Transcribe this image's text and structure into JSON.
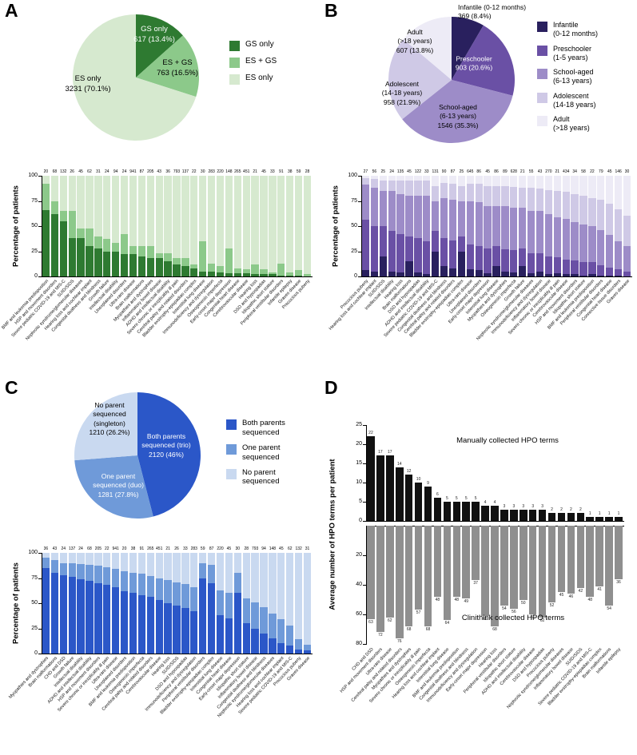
{
  "figure": {
    "panels": {
      "A": {
        "label": "A"
      },
      "B": {
        "label": "B"
      },
      "C": {
        "label": "C"
      },
      "D": {
        "label": "D"
      }
    }
  },
  "chart_data": [
    {
      "id": "a_pie",
      "type": "pie",
      "slices": [
        {
          "label": "GS only",
          "value": 617,
          "pct": "13.4%",
          "color": "#2e7a31",
          "label_color": "#ffffff",
          "label_lines": [
            "GS only",
            "617 (13.4%)"
          ]
        },
        {
          "label": "ES + GS",
          "value": 763,
          "pct": "16.5%",
          "color": "#8cc98a",
          "label_color": "#000000",
          "label_lines": [
            "ES + GS",
            "763 (16.5%)"
          ]
        },
        {
          "label": "ES only",
          "value": 3231,
          "pct": "70.1%",
          "color": "#d6e9cf",
          "label_color": "#000000",
          "label_lines": [
            "ES only",
            "3231 (70.1%)"
          ]
        }
      ],
      "legend": {
        "items": [
          {
            "label": "GS only",
            "color": "#2e7a31"
          },
          {
            "label": "ES + GS",
            "color": "#8cc98a"
          },
          {
            "label": "ES only",
            "color": "#d6e9cf"
          }
        ]
      }
    },
    {
      "id": "a_bars",
      "type": "stacked-bar",
      "ylabel": "Percentage of patients",
      "ymax": 100,
      "yticks": [
        0,
        25,
        50,
        75,
        100
      ],
      "counts": [
        20,
        68,
        132,
        26,
        45,
        62,
        31,
        24,
        94,
        24,
        941,
        87,
        205,
        43,
        36,
        793,
        137,
        22,
        30,
        283,
        220,
        148,
        265,
        451,
        21,
        45,
        33,
        91,
        38,
        59,
        28
      ],
      "categories": [
        "BMF and leukemia predisposition",
        "HSP and movement disorders",
        "Severe pediatric COVID-19 and MIS-C",
        "SUID/SIDS",
        "Nephrotic syndrome/glomerular diseases",
        "Hearing loss and cochlear implant",
        "Congenital deafness and blindness",
        "Growth failure",
        "Intellectual disability",
        "Unexplained disorders",
        "Ultra-rare disease",
        "Brain malformations",
        "Myopathies and dystrophies",
        "Inflammatory bowel disease",
        "ADHD and intellectual disability",
        "Severe chronic or inexplicably ill pain",
        "Cerebral palsy and related disorders",
        "Bladder exstrophy-epispadias complex",
        "Interstitial lung disease",
        "Immunodeficiency and dysregulation",
        "Osteogenesis imperfecta",
        "Early-onset major depression",
        "Congenital heart disease",
        "Cerebrovascular disease",
        "Hearing loss",
        "DSD and hypospadias",
        "Idiopathic short stature",
        "Peripheral vestibular disorders",
        "Infantile epilepsy",
        "Graves disease",
        "Precocious puberty"
      ],
      "series": [
        {
          "name": "GS only",
          "color": "#2e7a31",
          "values": [
            66,
            62,
            55,
            38,
            38,
            30,
            28,
            25,
            25,
            22,
            22,
            20,
            18,
            18,
            15,
            12,
            10,
            8,
            5,
            5,
            4,
            3,
            3,
            3,
            2,
            2,
            2,
            1,
            1,
            1,
            0
          ]
        },
        {
          "name": "ES + GS",
          "color": "#8cc98a",
          "values": [
            26,
            13,
            10,
            27,
            10,
            18,
            12,
            12,
            8,
            20,
            8,
            10,
            12,
            5,
            8,
            6,
            8,
            4,
            30,
            8,
            6,
            25,
            5,
            4,
            10,
            5,
            2,
            12,
            3,
            5,
            2
          ]
        },
        {
          "name": "ES only",
          "color": "#d6e9cf",
          "values": [
            8,
            25,
            35,
            35,
            52,
            52,
            60,
            63,
            67,
            58,
            70,
            70,
            70,
            77,
            77,
            82,
            82,
            88,
            65,
            87,
            90,
            72,
            92,
            93,
            88,
            93,
            96,
            87,
            96,
            94,
            98
          ]
        }
      ]
    },
    {
      "id": "b_pie",
      "type": "pie",
      "slices": [
        {
          "label": "Infantile (0-12 months)",
          "value": 369,
          "pct": "8.4%",
          "color": "#29205e",
          "label_color": "#000000",
          "label_lines": [
            "Infantile  (0-12 months)",
            "369 (8.4%)"
          ]
        },
        {
          "label": "Preschooler (1-5 years)",
          "value": 903,
          "pct": "20.6%",
          "color": "#6a50a5",
          "label_color": "#ffffff",
          "label_lines": [
            "Preschooler",
            "903 (20.6%)"
          ]
        },
        {
          "label": "School-aged (6-13 years)",
          "value": 1546,
          "pct": "35.3%",
          "color": "#9d8cc8",
          "label_color": "#000000",
          "label_lines": [
            "School-aged",
            "(6-13 years)",
            "1546 (35.3%)"
          ]
        },
        {
          "label": "Adolescent (14-18 years)",
          "value": 958,
          "pct": "21.9%",
          "color": "#cfc9e6",
          "label_color": "#000000",
          "label_lines": [
            "Adolescent",
            "(14-18 years)",
            "958 (21.9%)"
          ]
        },
        {
          "label": "Adult (>18 years)",
          "value": 607,
          "pct": "13.8%",
          "color": "#edebf6",
          "label_color": "#000000",
          "label_lines": [
            "Adult",
            "(>18 years)",
            "607 (13.8%)"
          ]
        }
      ],
      "legend": {
        "items": [
          {
            "label": "Infantile\n(0-12 months)",
            "color": "#29205e"
          },
          {
            "label": "Preschooler\n(1-5 years)",
            "color": "#6a50a5"
          },
          {
            "label": "School-aged\n(6-13 years)",
            "color": "#9d8cc8"
          },
          {
            "label": "Adolescent\n(14-18 years)",
            "color": "#cfc9e6"
          },
          {
            "label": "Adult\n(>18 years)",
            "color": "#edebf6"
          }
        ]
      }
    },
    {
      "id": "b_bars",
      "type": "stacked-bar",
      "ylabel": "Percentage of patients",
      "ymax": 100,
      "yticks": [
        0,
        25,
        50,
        75,
        100
      ],
      "counts": [
        27,
        56,
        25,
        24,
        135,
        45,
        122,
        33,
        131,
        90,
        87,
        25,
        645,
        86,
        45,
        86,
        89,
        628,
        21,
        55,
        43,
        270,
        21,
        434,
        34,
        58,
        22,
        79,
        45,
        146,
        30
      ],
      "categories": [
        "Precocious puberty",
        "Hearing loss and cochlear implant",
        "SUID/SIDS",
        "Intellectual disability",
        "Hearing loss",
        "Brain malformations",
        "DSD and hypospadias",
        "ADHD and intellectual disability",
        "Severe pediatric COVID-19 and MIS-C",
        "Congenital deafness and blindness",
        "Cerebral palsy and related disorders",
        "Bladder exstrophy-epispadias complex",
        "Ultra-rare disease",
        "Unexplained disorders",
        "Early-onset major depression",
        "Interstitial lung disease",
        "Myopathies and dystrophies",
        "Osteogenesis imperfecta",
        "Growth failure",
        "Nephrotic syndrome/glomerular diseases",
        "Immunodeficiency and dysregulation",
        "Inflammatory bowel disease",
        "Severe chronic or inexplicably ill pain",
        "Cerebrovascular disease",
        "HSP and movement disorders",
        "Idiopathic short stature",
        "BMF and leukemia predisposition",
        "Peripheral vestibular disorders",
        "Congenital heart disease",
        "Connective tissue disorders",
        "Graves disease"
      ],
      "series": [
        {
          "name": "Infantile (0-12 months)",
          "color": "#29205e",
          "values": [
            6,
            5,
            20,
            5,
            4,
            15,
            4,
            2,
            25,
            10,
            8,
            25,
            7,
            6,
            3,
            10,
            5,
            4,
            10,
            3,
            5,
            2,
            3,
            2,
            2,
            1,
            2,
            1,
            1,
            1,
            0
          ]
        },
        {
          "name": "Preschooler (1-5 years)",
          "color": "#6a50a5",
          "values": [
            50,
            45,
            30,
            40,
            38,
            25,
            34,
            33,
            20,
            28,
            28,
            15,
            25,
            24,
            25,
            20,
            22,
            22,
            18,
            20,
            18,
            18,
            16,
            15,
            14,
            13,
            12,
            10,
            8,
            6,
            5
          ]
        },
        {
          "name": "School-aged (6-13 years)",
          "color": "#9d8cc8",
          "values": [
            35,
            38,
            35,
            40,
            40,
            40,
            42,
            45,
            30,
            40,
            40,
            35,
            43,
            44,
            42,
            40,
            43,
            42,
            40,
            42,
            42,
            42,
            40,
            40,
            38,
            38,
            36,
            35,
            32,
            28,
            25
          ]
        },
        {
          "name": "Adolescent (14-18 years)",
          "color": "#cfc9e6",
          "values": [
            7,
            9,
            10,
            10,
            13,
            15,
            15,
            15,
            15,
            15,
            16,
            15,
            17,
            18,
            20,
            20,
            20,
            21,
            20,
            23,
            22,
            24,
            26,
            27,
            28,
            28,
            28,
            30,
            31,
            32,
            30
          ]
        },
        {
          "name": "Adult (>18 years)",
          "color": "#edebf6",
          "values": [
            2,
            3,
            5,
            5,
            5,
            5,
            5,
            5,
            10,
            7,
            8,
            10,
            8,
            8,
            10,
            10,
            10,
            11,
            12,
            12,
            13,
            14,
            15,
            16,
            18,
            20,
            22,
            24,
            28,
            33,
            40
          ]
        }
      ]
    },
    {
      "id": "c_pie",
      "type": "pie",
      "slices": [
        {
          "label": "Both parents sequenced (trio)",
          "value": 2120,
          "pct": "46%",
          "color": "#2b57c8",
          "label_color": "#ffffff",
          "label_lines": [
            "Both parents",
            "sequenced (trio)",
            "2120 (46%)"
          ]
        },
        {
          "label": "One parent sequenced (duo)",
          "value": 1281,
          "pct": "27.8%",
          "color": "#6f9ad9",
          "label_color": "#ffffff",
          "label_lines": [
            "One parent",
            "sequenced (duo)",
            "1281 (27.8%)"
          ]
        },
        {
          "label": "No parent sequenced (singleton)",
          "value": 1210,
          "pct": "26.2%",
          "color": "#c9d9f0",
          "label_color": "#000000",
          "label_lines": [
            "No parent",
            "sequenced",
            "(singleton)",
            "1210 (26.2%)"
          ]
        }
      ],
      "legend": {
        "items": [
          {
            "label": "Both parents\nsequenced",
            "color": "#2b57c8"
          },
          {
            "label": "One parent\nsequenced",
            "color": "#6f9ad9"
          },
          {
            "label": "No parent\nsequenced",
            "color": "#c9d9f0"
          }
        ]
      }
    },
    {
      "id": "c_bars",
      "type": "stacked-bar",
      "ylabel": "Percentage of patients",
      "ymax": 100,
      "yticks": [
        0,
        25,
        50,
        75,
        100
      ],
      "counts": [
        36,
        43,
        24,
        137,
        24,
        68,
        205,
        22,
        941,
        20,
        38,
        91,
        265,
        451,
        21,
        26,
        33,
        283,
        59,
        87,
        220,
        45,
        30,
        28,
        793,
        94,
        148,
        45,
        62,
        132,
        31
      ],
      "categories": [
        "Myopathies and dystrophies",
        "Brain malformations",
        "CHD and DSD",
        "Growth failure",
        "Intellectual disability",
        "ADHD and intellectual disability",
        "HSP and movement disorders",
        "Severe chronic or inexplicably ill pain",
        "Ultra-rare disease",
        "Unexplained disorders",
        "BMF and leukemia predisposition",
        "Osteogenesis imperfecta",
        "Cerebral palsy and related disorders",
        "Cerebrovascular disease",
        "Hearing loss",
        "SUID/SIDS",
        "DSD and hypospadias",
        "Immunodeficiency and dysregulation",
        "Peripheral vestibular disorders",
        "Bladder exstrophy-epispadias complex",
        "Interstitial lung disease",
        "Congenital heart disease",
        "Early-onset major depression",
        "Idiopathic short stature",
        "Inflammatory bowel disease",
        "Congenital deafness and blindness",
        "Nephrotic syndrome/glomerular diseases",
        "Hearing loss and cochlear implant",
        "Severe pediatric COVID-19 and MIS-C",
        "Precocious puberty",
        "Graves disease"
      ],
      "series": [
        {
          "name": "Both parents sequenced",
          "color": "#2b57c8",
          "values": [
            85,
            80,
            78,
            76,
            74,
            72,
            70,
            68,
            66,
            62,
            60,
            58,
            56,
            53,
            50,
            48,
            45,
            42,
            75,
            70,
            38,
            35,
            60,
            30,
            25,
            20,
            15,
            10,
            8,
            4,
            3
          ]
        },
        {
          "name": "One parent sequenced",
          "color": "#6f9ad9",
          "values": [
            10,
            13,
            12,
            14,
            15,
            16,
            17,
            18,
            18,
            20,
            20,
            21,
            21,
            22,
            23,
            23,
            24,
            24,
            15,
            18,
            25,
            25,
            20,
            25,
            26,
            26,
            25,
            24,
            20,
            10,
            6
          ]
        },
        {
          "name": "No parent sequenced",
          "color": "#c9d9f0",
          "values": [
            5,
            7,
            10,
            10,
            11,
            12,
            13,
            14,
            16,
            18,
            20,
            21,
            23,
            25,
            27,
            29,
            31,
            34,
            10,
            12,
            37,
            40,
            20,
            45,
            49,
            54,
            60,
            66,
            72,
            86,
            91
          ]
        }
      ]
    },
    {
      "id": "d_bars",
      "type": "bar-mirrored",
      "ylabel": "Average number of HPO terms per patient",
      "categories": [
        "CHD and DSD",
        "HSP and movement disorders",
        "Ultra-rare disease",
        "Cerebral palsy and related disorders",
        "Myopathies and dystrophies",
        "Severe chronic or inexplicably ill pain",
        "Osteogenesis imperfecta",
        "Hearing loss and cochlear implant",
        "Interstitial lung disease",
        "BMF and leukemia predisposition",
        "Congenital deafness and blindness",
        "Immunodeficiency and dysregulation",
        "Early-onset major depression",
        "Hearing loss",
        "Peripheral vestibular disorders",
        "Idiopathic short stature",
        "ADHD and intellectual disability",
        "Cerebrovascular disease",
        "DSD and hypospadias",
        "Precocious puberty",
        "Nephrotic syndrome/glomerular diseases",
        "Inflammatory bowel disease",
        "SUID/SIDS",
        "Severe pediatric COVID-19 and MIS-C",
        "Bladder exstrophy-epispadias complex",
        "Brain malformations",
        "Infantile epilepsy"
      ],
      "top": {
        "name": "Manually collected HPO terms",
        "color": "#111111",
        "ymax": 25,
        "yticks": [
          0,
          5,
          10,
          15,
          20,
          25
        ],
        "values": [
          22,
          17,
          17,
          14,
          12,
          10,
          9,
          6,
          5,
          5,
          5,
          5,
          4,
          4,
          3,
          3,
          3,
          3,
          3,
          2,
          2,
          2,
          2,
          1,
          1,
          1,
          1
        ]
      },
      "bottom": {
        "name": "Clinithink collected HPO terms",
        "color": "#8f8f8f",
        "ymax": 80,
        "yticks": [
          20,
          40,
          60,
          80
        ],
        "values": [
          63,
          72,
          62,
          76,
          68,
          57,
          68,
          48,
          64,
          48,
          49,
          37,
          61,
          68,
          54,
          56,
          50,
          60,
          62,
          52,
          45,
          46,
          42,
          48,
          41,
          54,
          36
        ]
      }
    }
  ]
}
